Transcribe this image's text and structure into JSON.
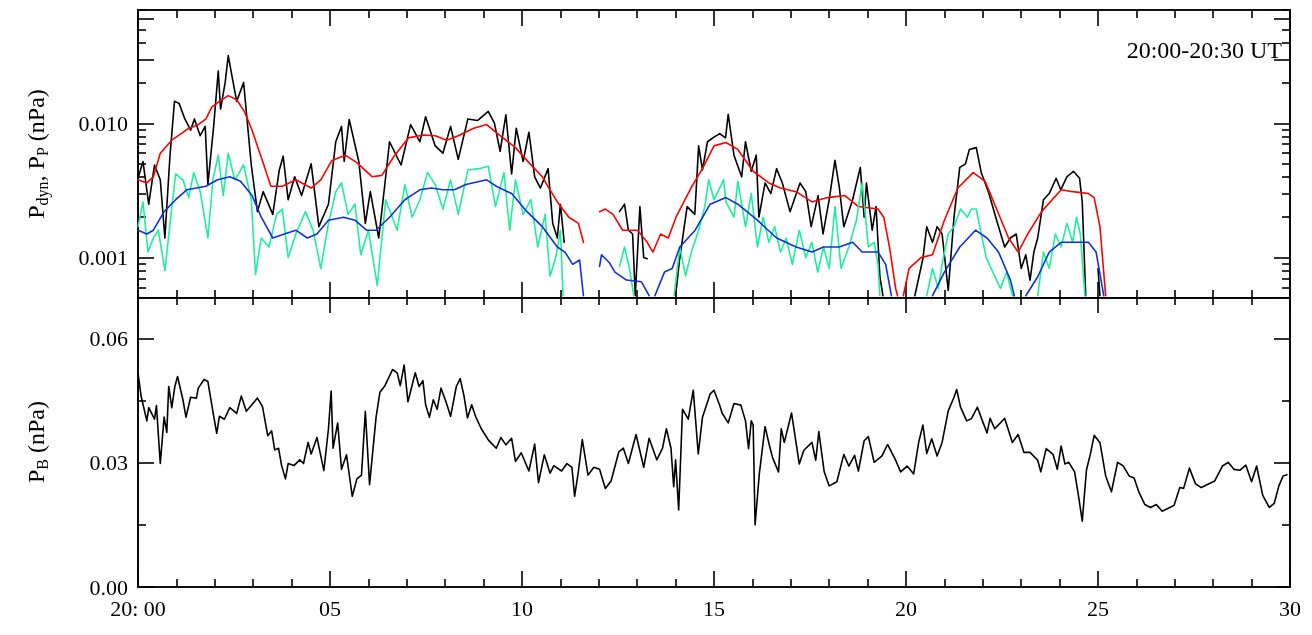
{
  "chart_data": [
    {
      "type": "line",
      "ylabel": "P$_{dyn}$, P$_{P}$ (nPa)",
      "log": true,
      "tick_labels": "y",
      "annotations": [
        "20:00-20:30 UT"
      ],
      "xlim": [
        0,
        30
      ],
      "ylim": [
        0.0005,
        0.07
      ],
      "xticks": [
        {
          "value": 0,
          "label": null
        },
        {
          "value": 1,
          "label": null
        },
        {
          "value": 2,
          "label": null
        },
        {
          "value": 3,
          "label": null
        },
        {
          "value": 4,
          "label": null
        },
        {
          "value": 5,
          "label": null
        },
        {
          "value": 6,
          "label": null
        },
        {
          "value": 7,
          "label": null
        },
        {
          "value": 8,
          "label": null
        },
        {
          "value": 9,
          "label": null
        },
        {
          "value": 10,
          "label": null
        },
        {
          "value": 11,
          "label": null
        },
        {
          "value": 12,
          "label": null
        },
        {
          "value": 13,
          "label": null
        },
        {
          "value": 14,
          "label": null
        },
        {
          "value": 15,
          "label": null
        },
        {
          "value": 16,
          "label": null
        },
        {
          "value": 17,
          "label": null
        },
        {
          "value": 18,
          "label": null
        },
        {
          "value": 19,
          "label": null
        },
        {
          "value": 20,
          "label": null
        },
        {
          "value": 21,
          "label": null
        },
        {
          "value": 22,
          "label": null
        },
        {
          "value": 23,
          "label": null
        },
        {
          "value": 24,
          "label": null
        },
        {
          "value": 25,
          "label": null
        },
        {
          "value": 26,
          "label": null
        },
        {
          "value": 27,
          "label": null
        },
        {
          "value": 28,
          "label": null
        },
        {
          "value": 29,
          "label": null
        },
        {
          "value": 30,
          "label": null
        }
      ],
      "yticks": [
        {
          "value": 0.0006,
          "label": null
        },
        {
          "value": 0.0007,
          "label": null
        },
        {
          "value": 0.0008,
          "label": null
        },
        {
          "value": 0.0009,
          "label": null
        },
        {
          "value": 0.001,
          "label": "0.001"
        },
        {
          "value": 0.002,
          "label": null
        },
        {
          "value": 0.003,
          "label": null
        },
        {
          "value": 0.004,
          "label": null
        },
        {
          "value": 0.005,
          "label": null
        },
        {
          "value": 0.006,
          "label": null
        },
        {
          "value": 0.007,
          "label": null
        },
        {
          "value": 0.008,
          "label": null
        },
        {
          "value": 0.009,
          "label": null
        },
        {
          "value": 0.01,
          "label": "0.010"
        },
        {
          "value": 0.02,
          "label": null
        },
        {
          "value": 0.03,
          "label": null
        },
        {
          "value": 0.04,
          "label": null
        },
        {
          "value": 0.05,
          "label": null
        },
        {
          "value": 0.06,
          "label": null
        },
        {
          "value": 0.07,
          "label": null
        }
      ],
      "series": [
        {
          "color": "#000000",
          "x": [
            0,
            0.13,
            0.28,
            0.43,
            0.58,
            0.7,
            0.83,
            0.95,
            1.07,
            1.22,
            1.37,
            1.47,
            1.62,
            1.75,
            1.82,
            1.97,
            2.09,
            2.15,
            2.27,
            2.35,
            2.45,
            2.57,
            2.75,
            2.95,
            3.11,
            3.26,
            3.51,
            3.68,
            3.78,
            3.91,
            4.08,
            4.26,
            4.51,
            4.71,
            4.96,
            5.15,
            5.3,
            5.37,
            5.5,
            5.75,
            5.92,
            6.05,
            6.27,
            6.45,
            6.55,
            6.85,
            7.1,
            7.34,
            7.49,
            7.74,
            7.94,
            8.14,
            8.34,
            8.59,
            8.84,
            9.12,
            9.28,
            9.43,
            9.58,
            9.73,
            9.85,
            10.03,
            10.18,
            10.33,
            10.48,
            10.68,
            10.8,
            10.92,
            11.0,
            11.1,
            11.6,
            12.54,
            12.67,
            12.77,
            12.88,
            12.95,
            13.07,
            13.17,
            13.26,
            13.6,
            14.0,
            14.1,
            14.3,
            14.5,
            14.6,
            14.7,
            14.83,
            15.0,
            15.15,
            15.3,
            15.37,
            15.52,
            15.72,
            15.82,
            15.97,
            16.1,
            16.17,
            16.33,
            16.48,
            16.63,
            16.78,
            16.98,
            17.24,
            17.39,
            17.53,
            17.71,
            17.84,
            18.0,
            18.15,
            18.26,
            18.38,
            18.61,
            18.81,
            18.91,
            18.97,
            19.12,
            19.22,
            19.32,
            19.4,
            19.8,
            20.23,
            20.44,
            20.54,
            20.69,
            20.81,
            20.94,
            21.1,
            21.25,
            21.4,
            21.55,
            21.65,
            21.83,
            21.96,
            22.16,
            22.36,
            22.57,
            22.72,
            22.87,
            23.0,
            23.12,
            23.23,
            23.33,
            23.43,
            23.58,
            23.73,
            23.91,
            24.03,
            24.19,
            24.36,
            24.52,
            24.59,
            24.68,
            24.85,
            25.0,
            25.05
          ],
          "values": [
            0.0039,
            0.0052,
            0.0025,
            0.0049,
            0.0038,
            0.0014,
            0.0056,
            0.0146,
            0.0141,
            0.0108,
            0.0089,
            0.0108,
            0.0081,
            0.0095,
            0.0035,
            0.0095,
            0.0246,
            0.0128,
            0.0202,
            0.032,
            0.0223,
            0.0146,
            0.0202,
            0.0049,
            0.0022,
            0.0031,
            0.0021,
            0.0045,
            0.0057,
            0.0027,
            0.004,
            0.0029,
            0.005,
            0.0017,
            0.0025,
            0.0073,
            0.0095,
            0.0052,
            0.0107,
            0.0052,
            0.0018,
            0.0031,
            0.0014,
            0.004,
            0.0073,
            0.0049,
            0.0098,
            0.0073,
            0.0112,
            0.0068,
            0.006,
            0.0095,
            0.0054,
            0.0108,
            0.0105,
            0.0123,
            0.0101,
            0.0062,
            0.0116,
            0.0042,
            0.0092,
            0.0052,
            0.0086,
            0.004,
            0.0033,
            0.0046,
            0.0018,
            0.0014,
            0.0025,
            0.0013,
            null,
            0.0022,
            0.0025,
            0.0016,
            0.0015,
            0.00052,
            0.0024,
            0.001,
            0.00098,
            null,
            0.00052,
            0.00095,
            0.0024,
            0.0021,
            0.0068,
            0.0045,
            0.0073,
            0.0079,
            0.0084,
            0.0078,
            0.0117,
            0.0058,
            0.004,
            0.0073,
            0.0044,
            0.0058,
            0.002,
            0.0036,
            0.003,
            0.0046,
            0.0036,
            0.0022,
            0.0036,
            0.0031,
            0.0017,
            0.0029,
            0.0015,
            0.0027,
            0.0053,
            0.0034,
            0.0017,
            0.0027,
            0.0047,
            0.002,
            0.0036,
            0.0016,
            0.0024,
            0.00072,
            0.00052,
            null,
            0.00052,
            0.00098,
            0.0017,
            0.0013,
            0.0017,
            0.0015,
            0.00057,
            0.002,
            0.0047,
            0.005,
            0.0064,
            0.0066,
            0.0043,
            0.003,
            0.0019,
            0.0012,
            0.0014,
            0.0015,
            0.00083,
            0.00105,
            0.00068,
            0.0011,
            0.0014,
            0.0027,
            0.003,
            0.0039,
            0.0032,
            0.004,
            0.0044,
            0.0039,
            0.0026,
            0.00052,
            null,
            0.00083,
            0.00052
          ]
        },
        {
          "color": "#ff0000",
          "x": [
            0,
            0.23,
            0.4,
            0.58,
            0.88,
            1.27,
            1.57,
            1.77,
            1.92,
            2.12,
            2.35,
            2.57,
            2.77,
            2.97,
            3.21,
            3.46,
            3.76,
            4.11,
            4.51,
            4.76,
            5.05,
            5.4,
            5.7,
            6.1,
            6.35,
            6.65,
            7.04,
            7.44,
            7.74,
            8.04,
            8.34,
            8.74,
            9.08,
            9.43,
            9.83,
            10.18,
            10.53,
            10.73,
            10.92,
            11.22,
            11.47,
            11.6,
            11.8,
            12.02,
            12.17,
            12.37,
            12.62,
            13.01,
            13.26,
            13.41,
            13.61,
            13.81,
            14.01,
            14.4,
            14.7,
            15.0,
            15.31,
            15.62,
            16.02,
            16.43,
            16.73,
            17.14,
            17.55,
            17.95,
            18.41,
            18.76,
            19.27,
            19.42,
            19.57,
            19.73,
            19.78,
            19.85,
            19.93,
            20.08,
            20.39,
            20.69,
            21.0,
            21.35,
            21.75,
            22.06,
            22.36,
            22.67,
            22.92,
            23.17,
            23.53,
            24.04,
            24.34,
            24.75,
            24.9,
            25.05,
            25.2
          ],
          "values": [
            0.0038,
            0.0036,
            0.004,
            0.006,
            0.0075,
            0.009,
            0.0098,
            0.0108,
            0.0132,
            0.0146,
            0.0161,
            0.015,
            0.0123,
            0.0089,
            0.0056,
            0.0034,
            0.0034,
            0.0038,
            0.0033,
            0.0038,
            0.0053,
            0.0058,
            0.0051,
            0.004,
            0.0041,
            0.0056,
            0.0078,
            0.0082,
            0.0081,
            0.0075,
            0.0081,
            0.0092,
            0.0098,
            0.0081,
            0.0066,
            0.0051,
            0.004,
            0.0032,
            0.0026,
            0.002,
            0.0018,
            0.0013,
            null,
            0.0022,
            0.0023,
            0.0021,
            0.0016,
            0.0016,
            0.0013,
            0.0011,
            0.0015,
            0.0014,
            0.002,
            0.0033,
            0.0046,
            0.0068,
            0.0072,
            0.0064,
            0.0044,
            0.0036,
            0.0033,
            0.0031,
            0.0026,
            0.0028,
            0.0029,
            0.0024,
            0.0023,
            0.002,
            0.0012,
            0.00059,
            0.00052,
            null,
            0.00052,
            0.00083,
            0.001,
            0.00105,
            0.0019,
            0.0033,
            0.0043,
            0.0037,
            0.0023,
            0.0014,
            0.0011,
            0.0015,
            0.0022,
            0.0032,
            0.0031,
            0.003,
            0.0028,
            0.0017,
            0.00052
          ]
        },
        {
          "color": "#1ef09a",
          "x": [
            0,
            0.13,
            0.26,
            0.4,
            0.53,
            0.7,
            0.86,
            0.98,
            1.17,
            1.32,
            1.45,
            1.62,
            1.82,
            1.95,
            2.09,
            2.22,
            2.35,
            2.52,
            2.75,
            2.95,
            3.06,
            3.21,
            3.41,
            3.61,
            3.76,
            3.91,
            4.11,
            4.36,
            4.56,
            4.76,
            4.96,
            5.15,
            5.3,
            5.47,
            5.65,
            5.8,
            6.0,
            6.23,
            6.45,
            6.75,
            6.95,
            7.14,
            7.34,
            7.54,
            7.74,
            7.94,
            8.14,
            8.34,
            8.59,
            8.88,
            9.12,
            9.31,
            9.53,
            9.68,
            9.83,
            10.03,
            10.23,
            10.41,
            10.6,
            10.73,
            10.88,
            11.0,
            11.07,
            11.8,
            12.54,
            12.67,
            12.8,
            12.91,
            13.4,
            13.96,
            14.11,
            14.26,
            14.41,
            14.6,
            14.76,
            14.86,
            15.0,
            15.25,
            15.31,
            15.52,
            15.62,
            15.82,
            15.97,
            16.13,
            16.28,
            16.43,
            16.58,
            16.73,
            16.88,
            17.04,
            17.22,
            17.39,
            17.55,
            17.7,
            17.85,
            18.0,
            18.15,
            18.31,
            18.51,
            18.71,
            18.86,
            19.02,
            19.17,
            19.27,
            19.32,
            19.9,
            20.54,
            20.69,
            20.84,
            20.94,
            21.1,
            21.25,
            21.42,
            21.6,
            21.7,
            21.83,
            21.96,
            22.09,
            22.26,
            22.46,
            22.62,
            22.77,
            22.82,
            23.1,
            23.43,
            23.58,
            23.73,
            23.89,
            24.04,
            24.19,
            24.34,
            24.44,
            24.54,
            24.66
          ],
          "values": [
            0.0017,
            0.0026,
            0.0011,
            0.0014,
            0.0016,
            0.0008,
            0.0021,
            0.0042,
            0.0038,
            0.0028,
            0.0043,
            0.0031,
            0.0014,
            0.0038,
            0.0058,
            0.0029,
            0.006,
            0.0038,
            0.0049,
            0.0027,
            0.00075,
            0.0014,
            0.0012,
            0.0021,
            0.0023,
            0.001,
            0.0015,
            0.0022,
            0.0016,
            0.00083,
            0.0018,
            0.0031,
            0.0036,
            0.0021,
            0.0025,
            0.00105,
            0.0016,
            0.00062,
            0.0027,
            0.0016,
            0.0035,
            0.002,
            0.0027,
            0.0043,
            0.0035,
            0.0023,
            0.0038,
            0.0021,
            0.0045,
            0.0046,
            0.0048,
            0.0024,
            0.0043,
            0.0016,
            0.0038,
            0.0021,
            0.0027,
            0.0012,
            0.0021,
            0.00073,
            0.001,
            0.0016,
            0.00052,
            null,
            0.00086,
            0.0012,
            0.00083,
            0.00052,
            null,
            0.00052,
            0.0012,
            0.00073,
            0.0011,
            0.0016,
            0.0024,
            0.0038,
            0.0027,
            0.0038,
            0.0026,
            0.002,
            0.0037,
            0.0017,
            0.003,
            0.0012,
            0.002,
            0.0013,
            0.0017,
            0.0011,
            0.0014,
            0.00089,
            0.0016,
            0.001,
            0.0013,
            0.00078,
            0.0012,
            0.00083,
            0.0024,
            0.00083,
            0.0012,
            0.0019,
            0.0036,
            0.0012,
            0.0013,
            0.00089,
            0.00052,
            null,
            0.00052,
            0.00083,
            0.00059,
            0.00089,
            0.0015,
            0.0017,
            0.0023,
            0.002,
            0.0023,
            0.0023,
            0.0015,
            0.001,
            0.00078,
            0.00059,
            0.00078,
            0.00052,
            0.00052,
            null,
            0.00052,
            0.0011,
            0.00083,
            0.0015,
            0.0012,
            0.0018,
            0.0013,
            0.002,
            0.0015,
            0.00052
          ]
        },
        {
          "color": "#1030e0",
          "x": [
            0,
            0.23,
            0.4,
            0.68,
            0.98,
            1.27,
            1.77,
            2.07,
            2.39,
            2.67,
            2.97,
            3.21,
            3.51,
            3.81,
            4.11,
            4.41,
            4.66,
            4.96,
            5.35,
            5.65,
            5.95,
            6.2,
            6.55,
            6.95,
            7.34,
            7.64,
            7.94,
            8.24,
            8.54,
            9.08,
            9.33,
            9.73,
            10.13,
            10.53,
            10.92,
            11.12,
            11.32,
            11.5,
            11.6,
            11.8,
            12.02,
            12.07,
            12.27,
            12.42,
            12.72,
            13.11,
            13.31,
            13.4,
            13.46,
            13.71,
            13.91,
            14.11,
            14.51,
            14.9,
            15.31,
            15.62,
            16.13,
            16.63,
            17.14,
            17.55,
            17.85,
            18.26,
            18.61,
            18.86,
            19.27,
            19.47,
            19.62,
            20.2,
            20.69,
            21.0,
            21.4,
            21.81,
            22.11,
            22.41,
            22.72,
            22.82,
            23.0,
            23.12,
            23.43,
            23.73,
            24.04,
            24.44,
            24.75,
            24.95,
            25.15
          ],
          "values": [
            0.0016,
            0.0015,
            0.0016,
            0.0022,
            0.0027,
            0.0032,
            0.0034,
            0.0038,
            0.004,
            0.0037,
            0.0029,
            0.002,
            0.0014,
            0.0015,
            0.0016,
            0.0014,
            0.0015,
            0.0019,
            0.002,
            0.0019,
            0.0016,
            0.0016,
            0.002,
            0.0027,
            0.0032,
            0.0033,
            0.0032,
            0.0032,
            0.0035,
            0.0038,
            0.0034,
            0.003,
            0.0022,
            0.0017,
            0.0012,
            0.0011,
            0.00089,
            0.00096,
            0.00052,
            null,
            0.00086,
            0.00105,
            0.00092,
            0.00078,
            0.00068,
            0.00066,
            0.00052,
            null,
            0.00052,
            0.00078,
            0.00083,
            0.0012,
            0.0016,
            0.0025,
            0.0028,
            0.0025,
            0.0019,
            0.0014,
            0.0012,
            0.0011,
            0.0012,
            0.0012,
            0.0013,
            0.0011,
            0.0011,
            0.00089,
            0.00052,
            null,
            0.00052,
            0.00078,
            0.0012,
            0.0016,
            0.0014,
            0.0011,
            0.00068,
            0.00052,
            null,
            0.00052,
            0.00072,
            0.0011,
            0.0013,
            0.0013,
            0.0013,
            0.0011,
            0.00052
          ]
        }
      ]
    },
    {
      "type": "line",
      "ylabel": "P$_{B}$ (nPa)",
      "xlim": [
        0,
        30
      ],
      "ylim": [
        0,
        0.07
      ],
      "xticks": [
        {
          "value": 0,
          "label": "20: 00"
        },
        {
          "value": 1,
          "label": null
        },
        {
          "value": 2,
          "label": null
        },
        {
          "value": 3,
          "label": null
        },
        {
          "value": 4,
          "label": null
        },
        {
          "value": 5,
          "label": "05"
        },
        {
          "value": 6,
          "label": null
        },
        {
          "value": 7,
          "label": null
        },
        {
          "value": 8,
          "label": null
        },
        {
          "value": 9,
          "label": null
        },
        {
          "value": 10,
          "label": "10"
        },
        {
          "value": 11,
          "label": null
        },
        {
          "value": 12,
          "label": null
        },
        {
          "value": 13,
          "label": null
        },
        {
          "value": 14,
          "label": null
        },
        {
          "value": 15,
          "label": "15"
        },
        {
          "value": 16,
          "label": null
        },
        {
          "value": 17,
          "label": null
        },
        {
          "value": 18,
          "label": null
        },
        {
          "value": 19,
          "label": null
        },
        {
          "value": 20,
          "label": "20"
        },
        {
          "value": 21,
          "label": null
        },
        {
          "value": 22,
          "label": null
        },
        {
          "value": 23,
          "label": null
        },
        {
          "value": 24,
          "label": null
        },
        {
          "value": 25,
          "label": "25"
        },
        {
          "value": 26,
          "label": null
        },
        {
          "value": 27,
          "label": null
        },
        {
          "value": 28,
          "label": null
        },
        {
          "value": 29,
          "label": null
        },
        {
          "value": 30,
          "label": "30"
        }
      ],
      "yticks": [
        {
          "value": 0,
          "label": "0.00"
        },
        {
          "value": 0.015,
          "label": null
        },
        {
          "value": 0.03,
          "label": "0.03"
        },
        {
          "value": 0.045,
          "label": null
        },
        {
          "value": 0.06,
          "label": "0.06"
        }
      ],
      "series": [
        {
          "color": "#000000",
          "x": [
            0,
            0.08,
            0.23,
            0.28,
            0.43,
            0.48,
            0.58,
            0.68,
            0.75,
            0.8,
            0.88,
            0.96,
            1.03,
            1.17,
            1.25,
            1.37,
            1.52,
            1.57,
            1.72,
            1.82,
            1.95,
            2.05,
            2.12,
            2.25,
            2.39,
            2.57,
            2.69,
            2.82,
            2.95,
            3.11,
            3.24,
            3.38,
            3.48,
            3.56,
            3.66,
            3.74,
            3.84,
            3.91,
            4.06,
            4.21,
            4.31,
            4.43,
            4.51,
            4.66,
            4.84,
            4.96,
            5.03,
            5.08,
            5.2,
            5.3,
            5.43,
            5.58,
            5.7,
            5.82,
            5.92,
            6.03,
            6.2,
            6.3,
            6.43,
            6.63,
            6.75,
            6.83,
            6.93,
            7.03,
            7.22,
            7.32,
            7.42,
            7.49,
            7.59,
            7.69,
            7.79,
            7.89,
            8.02,
            8.14,
            8.29,
            8.39,
            8.49,
            8.58,
            8.69,
            8.79,
            8.94,
            9.13,
            9.33,
            9.45,
            9.58,
            9.73,
            9.83,
            9.98,
            10.18,
            10.33,
            10.43,
            10.58,
            10.73,
            10.83,
            11.03,
            11.17,
            11.3,
            11.37,
            11.47,
            11.57,
            11.72,
            11.87,
            12.02,
            12.17,
            12.32,
            12.52,
            12.64,
            12.77,
            12.97,
            13.17,
            13.31,
            13.51,
            13.66,
            13.76,
            13.88,
            13.95,
            14.0,
            14.08,
            14.18,
            14.33,
            14.46,
            14.59,
            14.7,
            14.9,
            15.0,
            15.15,
            15.21,
            15.37,
            15.52,
            15.7,
            15.82,
            15.9,
            15.97,
            16.02,
            16.07,
            16.18,
            16.33,
            16.45,
            16.53,
            16.68,
            16.75,
            16.83,
            17.02,
            17.09,
            17.22,
            17.34,
            17.55,
            17.65,
            17.73,
            17.87,
            18.0,
            18.2,
            18.38,
            18.51,
            18.66,
            18.76,
            18.91,
            19.02,
            19.17,
            19.37,
            19.52,
            19.73,
            19.86,
            20.03,
            20.2,
            20.33,
            20.44,
            20.54,
            20.67,
            20.81,
            20.94,
            21.1,
            21.25,
            21.32,
            21.42,
            21.58,
            21.7,
            21.86,
            21.99,
            22.11,
            22.19,
            22.31,
            22.57,
            22.77,
            22.92,
            23.07,
            23.23,
            23.43,
            23.51,
            23.65,
            23.83,
            23.94,
            24.04,
            24.14,
            24.24,
            24.39,
            24.49,
            24.59,
            24.7,
            24.8,
            24.9,
            25.05,
            25.2,
            25.35,
            25.51,
            25.66,
            25.81,
            25.94,
            26.06,
            26.22,
            26.37,
            26.52,
            26.67,
            26.83,
            26.98,
            27.13,
            27.23,
            27.38,
            27.54,
            27.69,
            27.89,
            28.04,
            28.24,
            28.39,
            28.54,
            28.7,
            28.85,
            29.0,
            29.13,
            29.29,
            29.46,
            29.59,
            29.71,
            29.82,
            29.92
          ],
          "values": [
            0.0517,
            0.0461,
            0.0401,
            0.0433,
            0.0405,
            0.0438,
            0.0298,
            0.041,
            0.0373,
            0.0484,
            0.0433,
            0.0484,
            0.0508,
            0.0452,
            0.041,
            0.0458,
            0.0456,
            0.048,
            0.0501,
            0.0496,
            0.0424,
            0.0371,
            0.0412,
            0.0405,
            0.0433,
            0.0419,
            0.0461,
            0.0424,
            0.0438,
            0.0456,
            0.0436,
            0.0365,
            0.0377,
            0.0331,
            0.0335,
            0.0293,
            0.0261,
            0.0298,
            0.0293,
            0.0307,
            0.0298,
            0.0349,
            0.0321,
            0.0361,
            0.0281,
            0.0382,
            0.0473,
            0.0335,
            0.0396,
            0.0284,
            0.0319,
            0.0219,
            0.0261,
            0.027,
            0.0424,
            0.0247,
            0.041,
            0.047,
            0.0486,
            0.0525,
            0.0517,
            0.0486,
            0.0536,
            0.0447,
            0.0517,
            0.0484,
            0.0498,
            0.044,
            0.041,
            0.0452,
            0.0429,
            0.048,
            0.0447,
            0.0412,
            0.0484,
            0.0503,
            0.0461,
            0.0408,
            0.044,
            0.0412,
            0.0382,
            0.0354,
            0.0335,
            0.0361,
            0.0343,
            0.0359,
            0.0303,
            0.0324,
            0.028,
            0.0345,
            0.0252,
            0.0319,
            0.0275,
            0.0293,
            0.028,
            0.0298,
            0.0289,
            0.0219,
            0.028,
            0.0356,
            0.027,
            0.0289,
            0.0284,
            0.0238,
            0.0256,
            0.0326,
            0.0335,
            0.0298,
            0.0368,
            0.0289,
            0.0359,
            0.0307,
            0.0335,
            0.0382,
            0.0335,
            0.0242,
            0.0307,
            0.0186,
            0.0429,
            0.0405,
            0.0475,
            0.0321,
            0.041,
            0.0466,
            0.0475,
            0.0438,
            0.042,
            0.0396,
            0.0443,
            0.0439,
            0.0401,
            0.0334,
            0.0401,
            0.0391,
            0.015,
            0.0273,
            0.0387,
            0.0339,
            0.0311,
            0.0278,
            0.0382,
            0.0349,
            0.042,
            0.0377,
            0.0297,
            0.033,
            0.0349,
            0.0306,
            0.0375,
            0.0278,
            0.0244,
            0.0254,
            0.032,
            0.0292,
            0.0318,
            0.028,
            0.0353,
            0.0363,
            0.0301,
            0.0316,
            0.0344,
            0.0306,
            0.0278,
            0.0292,
            0.0273,
            0.0349,
            0.0391,
            0.0322,
            0.0358,
            0.0316,
            0.0349,
            0.0425,
            0.0458,
            0.0477,
            0.0434,
            0.0401,
            0.0406,
            0.0434,
            0.0401,
            0.0372,
            0.0407,
            0.0382,
            0.0407,
            0.0349,
            0.0368,
            0.0325,
            0.0325,
            0.0306,
            0.0278,
            0.0334,
            0.032,
            0.0284,
            0.034,
            0.0297,
            0.0301,
            0.0278,
            0.0221,
            0.0159,
            0.0283,
            0.032,
            0.0366,
            0.0349,
            0.0268,
            0.023,
            0.0301,
            0.0292,
            0.0268,
            0.0263,
            0.023,
            0.0199,
            0.0192,
            0.0199,
            0.0183,
            0.019,
            0.0197,
            0.024,
            0.0238,
            0.0287,
            0.0249,
            0.024,
            0.0249,
            0.0256,
            0.0292,
            0.0301,
            0.0284,
            0.0282,
            0.0294,
            0.0254,
            0.0292,
            0.0221,
            0.0192,
            0.0202,
            0.0244,
            0.0268,
            0.0271
          ]
        }
      ]
    }
  ]
}
